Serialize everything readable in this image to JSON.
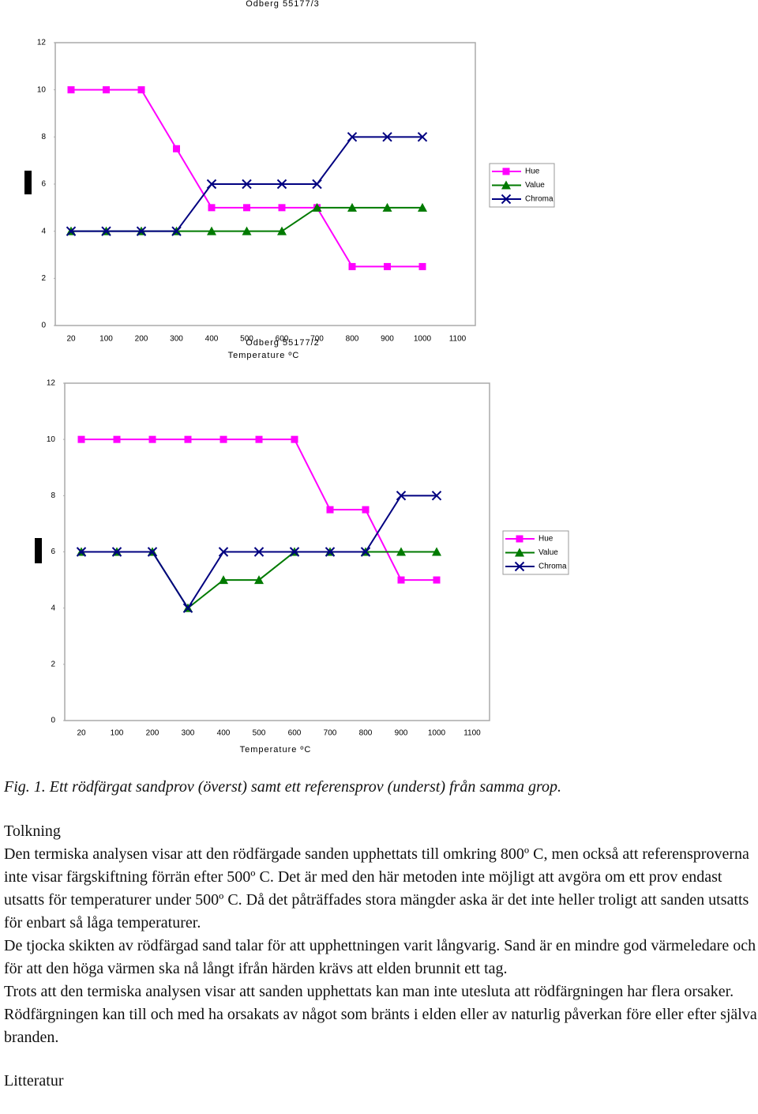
{
  "chart_data": [
    {
      "type": "line",
      "title": "Odberg 55177/3",
      "x_label": "Temperature ºC",
      "categories": [
        "20",
        "100",
        "200",
        "300",
        "400",
        "500",
        "600",
        "700",
        "800",
        "900",
        "1000",
        "1100"
      ],
      "series": [
        {
          "name": "Hue",
          "color": "#ff00ff",
          "marker": "square",
          "values": [
            10,
            10,
            10,
            7.5,
            5,
            5,
            5,
            5,
            2.5,
            2.5,
            2.5,
            null
          ]
        },
        {
          "name": "Value",
          "color": "#007a00",
          "marker": "triangle",
          "values": [
            4,
            4,
            4,
            4,
            4,
            4,
            4,
            5,
            5,
            5,
            5,
            null
          ]
        },
        {
          "name": "Chroma",
          "color": "#000080",
          "marker": "x",
          "values": [
            4,
            4,
            4,
            4,
            6,
            6,
            6,
            6,
            8,
            8,
            8,
            null
          ]
        }
      ],
      "ylim": [
        0,
        12
      ],
      "yticks": [
        0,
        2,
        4,
        6,
        8,
        10,
        12
      ],
      "grid": false,
      "legend": "right"
    },
    {
      "type": "line",
      "title": "Odberg 55177/2",
      "x_label": "Temperature ºC",
      "categories": [
        "20",
        "100",
        "200",
        "300",
        "400",
        "500",
        "600",
        "700",
        "800",
        "900",
        "1000",
        "1100"
      ],
      "series": [
        {
          "name": "Hue",
          "color": "#ff00ff",
          "marker": "square",
          "values": [
            10,
            10,
            10,
            10,
            10,
            10,
            10,
            7.5,
            7.5,
            5,
            5,
            null
          ]
        },
        {
          "name": "Value",
          "color": "#007a00",
          "marker": "triangle",
          "values": [
            6,
            6,
            6,
            4,
            5,
            5,
            6,
            6,
            6,
            6,
            6,
            null
          ]
        },
        {
          "name": "Chroma",
          "color": "#000080",
          "marker": "x",
          "values": [
            6,
            6,
            6,
            4,
            6,
            6,
            6,
            6,
            6,
            8,
            8,
            null
          ]
        }
      ],
      "ylim": [
        0,
        12
      ],
      "yticks": [
        0,
        2,
        4,
        6,
        8,
        10,
        12
      ],
      "grid": false,
      "legend": "right"
    }
  ],
  "caption": "Fig. 1. Ett rödfärgat sandprov (överst) samt ett referensprov (underst) från samma grop.",
  "heading": "Tolkning",
  "paragraphs": [
    "Den termiska analysen visar att den rödfärgade sanden upphettats till omkring 800º C, men också att referensproverna inte visar färgskiftning förrän efter 500º C. Det är med den här metoden inte möjligt att avgöra om ett prov endast utsatts för temperaturer under 500º C. Då det påträffades stora mängder aska är det inte heller troligt att sanden utsatts för enbart så låga temperaturer.",
    "De tjocka skikten av rödfärgad sand talar för att upphettningen varit långvarig. Sand är en mindre god värmeledare och för att den höga värmen ska nå långt ifrån härden krävs att elden brunnit ett tag.",
    "Trots att den termiska analysen visar att sanden upphettats kan man inte utesluta att rödfärgningen har flera orsaker. Rödfärgningen kan till och med ha orsakats av något som bränts i elden eller av naturlig påverkan före eller efter själva branden."
  ],
  "footer_heading": "Litteratur"
}
